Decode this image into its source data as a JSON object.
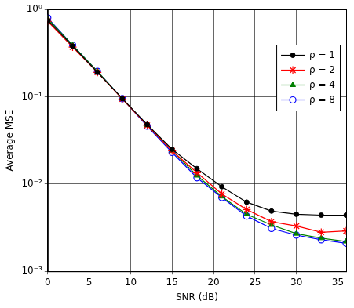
{
  "chart_data": {
    "type": "line",
    "x_label": "SNR (dB)",
    "y_label": "Average MSE",
    "x": [
      0,
      3,
      6,
      9,
      12,
      15,
      18,
      21,
      24,
      27,
      30,
      33,
      36
    ],
    "series": [
      {
        "name": "ρ = 1",
        "color": "#000000",
        "marker": "dot",
        "values": [
          0.75,
          0.38,
          0.19,
          0.095,
          0.048,
          0.025,
          0.015,
          0.0093,
          0.0062,
          0.0049,
          0.0045,
          0.0044,
          0.0044
        ]
      },
      {
        "name": "ρ = 2",
        "color": "#ff0000",
        "marker": "star",
        "values": [
          0.73,
          0.37,
          0.19,
          0.094,
          0.047,
          0.024,
          0.0135,
          0.0077,
          0.0051,
          0.0037,
          0.0033,
          0.0028,
          0.0029
        ]
      },
      {
        "name": "ρ = 4",
        "color": "#008000",
        "marker": "triangle",
        "values": [
          0.78,
          0.39,
          0.195,
          0.095,
          0.047,
          0.024,
          0.0125,
          0.0072,
          0.0045,
          0.0034,
          0.0027,
          0.0024,
          0.0022
        ]
      },
      {
        "name": "ρ = 8",
        "color": "#0000ff",
        "marker": "circle",
        "values": [
          0.8,
          0.39,
          0.195,
          0.095,
          0.046,
          0.023,
          0.0118,
          0.007,
          0.0043,
          0.0031,
          0.0026,
          0.0023,
          0.0021
        ]
      }
    ],
    "xlim": [
      0,
      36
    ],
    "xticks": [
      0,
      5,
      10,
      15,
      20,
      25,
      30,
      35
    ],
    "ylim": [
      0.001,
      1
    ],
    "yticks": [
      {
        "value": 0.001,
        "label": "10⁻³"
      },
      {
        "value": 0.01,
        "label": "10⁻²"
      },
      {
        "value": 0.1,
        "label": "10⁻¹"
      },
      {
        "value": 1,
        "label": "10⁰"
      }
    ],
    "log": "y",
    "grid": true,
    "legend": "top-right"
  }
}
